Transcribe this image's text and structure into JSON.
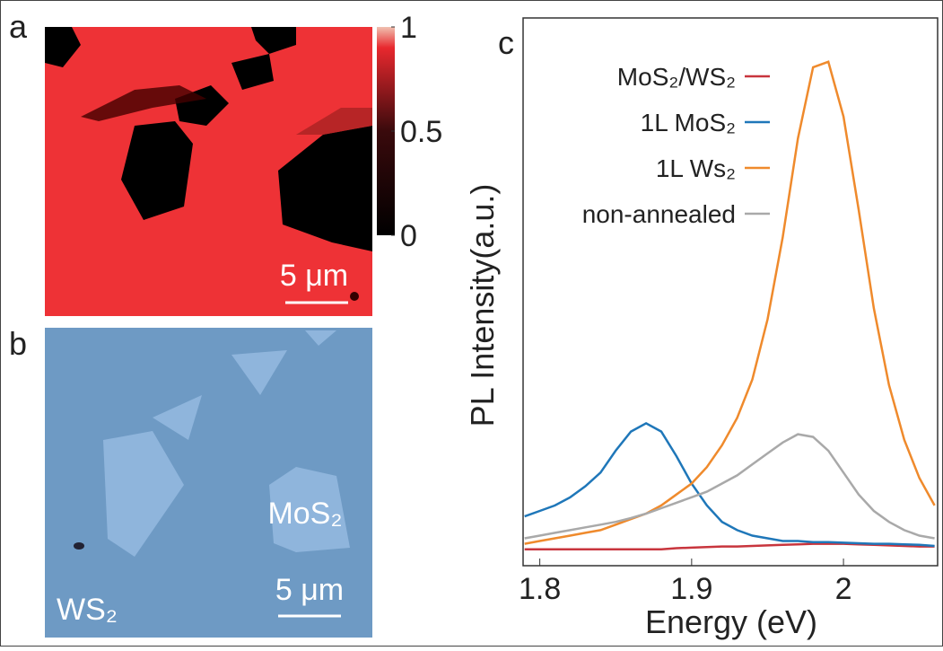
{
  "panels": {
    "a": {
      "label": "a",
      "scale_bar": "5 μm",
      "colorbar": {
        "ticks": [
          0,
          0.5,
          1
        ]
      }
    },
    "b": {
      "label": "b",
      "flake_labels": [
        "MoS₂",
        "WS₂"
      ],
      "scale_bar": "5 μm"
    },
    "c": {
      "label": "c"
    }
  },
  "chart_data": {
    "type": "line",
    "x_label": "Energy (eV)",
    "y_label": "PL Intensity(a.u.)",
    "x": [
      1.79,
      1.8,
      1.81,
      1.82,
      1.83,
      1.84,
      1.85,
      1.86,
      1.87,
      1.88,
      1.89,
      1.9,
      1.91,
      1.92,
      1.93,
      1.94,
      1.95,
      1.96,
      1.97,
      1.98,
      1.99,
      2.0,
      2.01,
      2.02,
      2.03,
      2.04,
      2.05,
      2.06
    ],
    "xlim": [
      1.789,
      2.062
    ],
    "xticks": [
      1.8,
      1.9,
      2
    ],
    "ylim": [
      0,
      100
    ],
    "legend": "upper left",
    "series": [
      {
        "name": "MoS₂/WS₂",
        "color": "#c8353d",
        "values": [
          3,
          3,
          3,
          3,
          3,
          3,
          3,
          3,
          3,
          3,
          3.2,
          3.3,
          3.4,
          3.5,
          3.5,
          3.6,
          3.7,
          3.8,
          3.9,
          4,
          4,
          4,
          3.9,
          3.8,
          3.7,
          3.6,
          3.5,
          3.5
        ]
      },
      {
        "name": "1L MoS₂",
        "color": "#1f77b9",
        "values": [
          9,
          10,
          11,
          12.5,
          14.5,
          17,
          21,
          24.5,
          26,
          24.5,
          20,
          15,
          11,
          8,
          6.5,
          5.5,
          5,
          4.5,
          4.5,
          4.3,
          4.3,
          4.2,
          4.1,
          4,
          4,
          3.9,
          3.8,
          3.6
        ]
      },
      {
        "name": "1L Ws₂",
        "color": "#ef8a2c",
        "values": [
          4,
          4.5,
          5,
          5.5,
          6,
          6.5,
          7.5,
          8.5,
          9.5,
          11,
          13,
          15,
          18,
          22,
          27,
          34,
          45,
          60,
          78,
          91,
          92,
          82,
          65,
          47,
          33,
          23,
          16,
          11
        ]
      },
      {
        "name": "non-annealed",
        "color": "#a9a9a9",
        "values": [
          5,
          5.5,
          6,
          6.5,
          7,
          7.5,
          8,
          8.7,
          9.5,
          10.5,
          11.5,
          12.5,
          13.5,
          15,
          16.5,
          18.5,
          20.5,
          22.5,
          24,
          23.5,
          21,
          17,
          13,
          10,
          8,
          6.5,
          5.5,
          5
        ]
      }
    ]
  }
}
